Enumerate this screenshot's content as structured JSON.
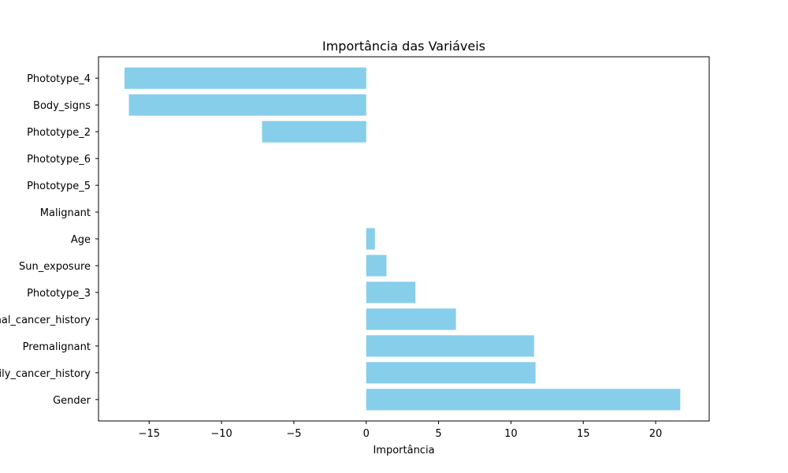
{
  "chart_data": {
    "type": "bar",
    "orientation": "horizontal",
    "title": "Importância das Variáveis",
    "xlabel": "Importância",
    "ylabel": "",
    "xlim": [
      -18.5,
      23.7
    ],
    "xticks": [
      -15,
      -10,
      -5,
      0,
      5,
      10,
      15,
      20
    ],
    "xtick_labels": [
      "−15",
      "−10",
      "−5",
      "0",
      "5",
      "10",
      "15",
      "20"
    ],
    "grid": false,
    "bar_color": "#87CEEB",
    "categories": [
      "Gender",
      "Family_cancer_history",
      "Premalignant",
      "Personal_cancer_history",
      "Phototype_3",
      "Sun_exposure",
      "Age",
      "Malignant",
      "Phototype_5",
      "Phototype_6",
      "Phototype_2",
      "Body_signs",
      "Phototype_4"
    ],
    "values": [
      21.7,
      11.7,
      11.6,
      6.2,
      3.4,
      1.4,
      0.6,
      0.0,
      0.0,
      0.0,
      -7.2,
      -16.4,
      -16.7
    ]
  }
}
